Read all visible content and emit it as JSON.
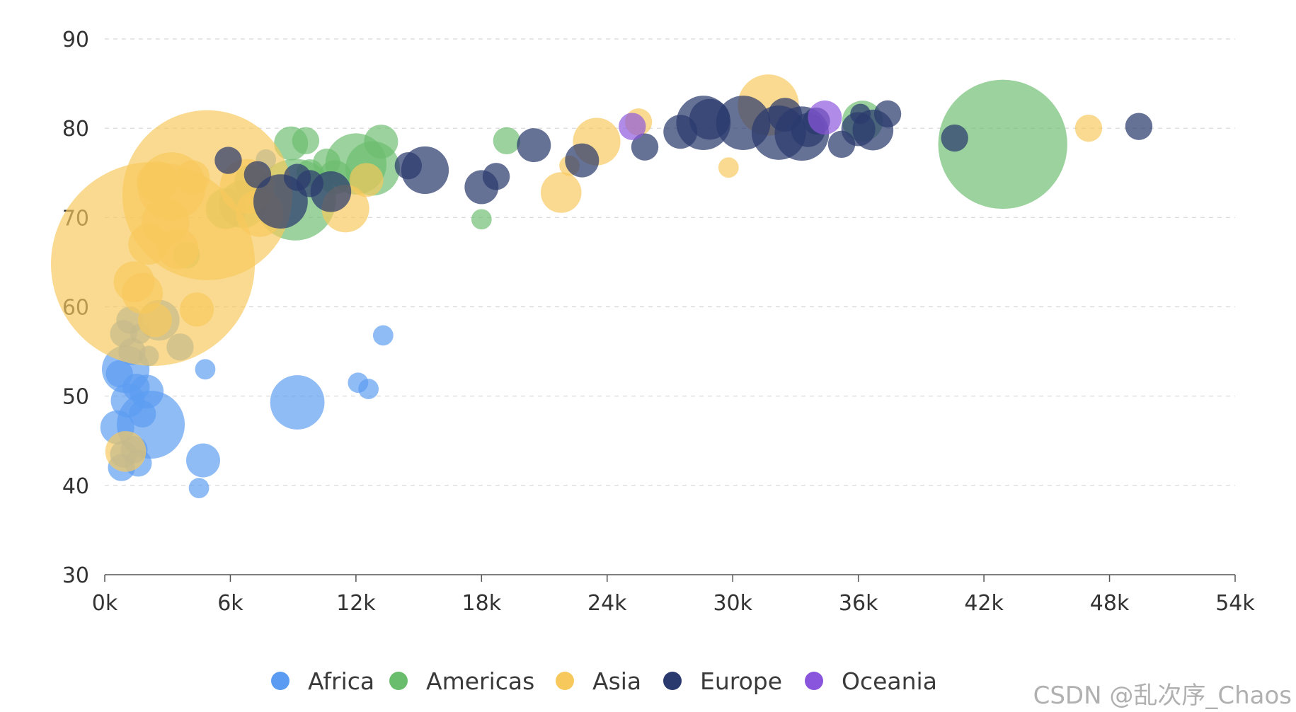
{
  "chart_data": {
    "type": "scatter",
    "title": "",
    "xlabel": "",
    "ylabel": "",
    "xlim": [
      0,
      54000
    ],
    "ylim": [
      30,
      90
    ],
    "x_ticks": [
      0,
      6000,
      12000,
      18000,
      24000,
      30000,
      36000,
      42000,
      48000,
      54000
    ],
    "x_tick_labels": [
      "0k",
      "6k",
      "12k",
      "18k",
      "24k",
      "30k",
      "36k",
      "42k",
      "48k",
      "54k"
    ],
    "y_ticks": [
      30,
      40,
      50,
      60,
      70,
      80,
      90
    ],
    "y_tick_labels": [
      "30",
      "40",
      "50",
      "60",
      "70",
      "80",
      "90"
    ],
    "grid": "horizontal-dashed",
    "legend_position": "bottom",
    "note": "bubble size encodes a third value (relative units)",
    "series": [
      {
        "name": "Africa",
        "color": "#5b9cf2",
        "points": [
          [
            600,
            46.5,
            5
          ],
          [
            900,
            43.5,
            4
          ],
          [
            800,
            42,
            4
          ],
          [
            1000,
            53,
            7
          ],
          [
            1100,
            49.5,
            5
          ],
          [
            1300,
            55,
            4
          ],
          [
            1500,
            51,
            4
          ],
          [
            1700,
            57,
            3
          ],
          [
            1800,
            48,
            4
          ],
          [
            2000,
            50.5,
            5
          ],
          [
            2200,
            46.8,
            10
          ],
          [
            2100,
            54.5,
            3
          ],
          [
            1200,
            58.5,
            4
          ],
          [
            900,
            57,
            4
          ],
          [
            2600,
            58.5,
            6
          ],
          [
            3600,
            55.5,
            4
          ],
          [
            4800,
            53,
            3
          ],
          [
            4700,
            42.8,
            5
          ],
          [
            4500,
            39.7,
            3
          ],
          [
            9200,
            49.3,
            8
          ],
          [
            12100,
            51.5,
            3
          ],
          [
            12600,
            50.8,
            3
          ],
          [
            13300,
            56.8,
            3
          ],
          [
            1400,
            44,
            4
          ],
          [
            1600,
            42.5,
            4
          ],
          [
            700,
            52.5,
            4
          ],
          [
            7700,
            76.5,
            3
          ]
        ]
      },
      {
        "name": "Americas",
        "color": "#6bbd6e",
        "points": [
          [
            9100,
            72,
            12
          ],
          [
            12000,
            76,
            9
          ],
          [
            12800,
            75.5,
            8
          ],
          [
            11000,
            74.5,
            5
          ],
          [
            13200,
            78.5,
            5
          ],
          [
            8900,
            78.3,
            5
          ],
          [
            9600,
            78.6,
            4
          ],
          [
            10600,
            76.2,
            4
          ],
          [
            19200,
            78.6,
            4
          ],
          [
            18000,
            69.8,
            3
          ],
          [
            6600,
            71.5,
            7
          ],
          [
            5800,
            71,
            6
          ],
          [
            3900,
            65.8,
            4
          ],
          [
            36200,
            80.8,
            6
          ],
          [
            42900,
            78.2,
            19
          ],
          [
            7000,
            74,
            5
          ],
          [
            9800,
            75,
            4
          ]
        ]
      },
      {
        "name": "Asia",
        "color": "#f7c95c",
        "points": [
          [
            4900,
            72.5,
            25
          ],
          [
            2300,
            64.8,
            30
          ],
          [
            1400,
            62.8,
            6
          ],
          [
            1800,
            61.5,
            6
          ],
          [
            2400,
            58.5,
            5
          ],
          [
            4400,
            59.7,
            5
          ],
          [
            2100,
            67,
            6
          ],
          [
            2500,
            74,
            6
          ],
          [
            3200,
            73.5,
            10
          ],
          [
            4200,
            74.5,
            5
          ],
          [
            6800,
            73.5,
            8
          ],
          [
            7400,
            70.5,
            7
          ],
          [
            11500,
            71,
            7
          ],
          [
            12500,
            74.2,
            5
          ],
          [
            21800,
            72.8,
            6
          ],
          [
            22200,
            75.8,
            3
          ],
          [
            23500,
            78.5,
            7
          ],
          [
            25500,
            80.7,
            4
          ],
          [
            29800,
            75.6,
            3
          ],
          [
            31700,
            82.6,
            9
          ],
          [
            47000,
            80,
            4
          ],
          [
            1000,
            43.8,
            6
          ],
          [
            2900,
            69.5,
            7
          ],
          [
            3500,
            66.5,
            6
          ]
        ]
      },
      {
        "name": "Europe",
        "color": "#2b3a6e",
        "points": [
          [
            5900,
            76.4,
            4
          ],
          [
            7300,
            74.8,
            4
          ],
          [
            8400,
            71.8,
            8
          ],
          [
            9200,
            74.5,
            4
          ],
          [
            9800,
            73.8,
            4
          ],
          [
            10800,
            72.9,
            6
          ],
          [
            14500,
            75.8,
            4
          ],
          [
            15300,
            75.3,
            7
          ],
          [
            18000,
            73.4,
            5
          ],
          [
            18700,
            74.6,
            4
          ],
          [
            20500,
            78.1,
            5
          ],
          [
            22800,
            76.4,
            5
          ],
          [
            25800,
            77.9,
            4
          ],
          [
            27500,
            79.6,
            5
          ],
          [
            28600,
            80.6,
            8
          ],
          [
            28900,
            81,
            6
          ],
          [
            30500,
            80.6,
            8
          ],
          [
            32200,
            79.5,
            8
          ],
          [
            33300,
            79.4,
            8
          ],
          [
            33600,
            79.8,
            5
          ],
          [
            34000,
            80.8,
            4
          ],
          [
            35200,
            78.2,
            4
          ],
          [
            36000,
            79.9,
            5
          ],
          [
            36700,
            79.8,
            6
          ],
          [
            37400,
            81.6,
            4
          ],
          [
            36100,
            81.6,
            3
          ],
          [
            40600,
            78.9,
            4
          ],
          [
            49400,
            80.2,
            4
          ],
          [
            32500,
            81.5,
            5
          ]
        ]
      },
      {
        "name": "Oceania",
        "color": "#8a55dd",
        "points": [
          [
            25200,
            80.2,
            4
          ],
          [
            34400,
            81.2,
            5
          ]
        ]
      }
    ]
  },
  "watermark": "CSDN @乱次序_Chaos"
}
